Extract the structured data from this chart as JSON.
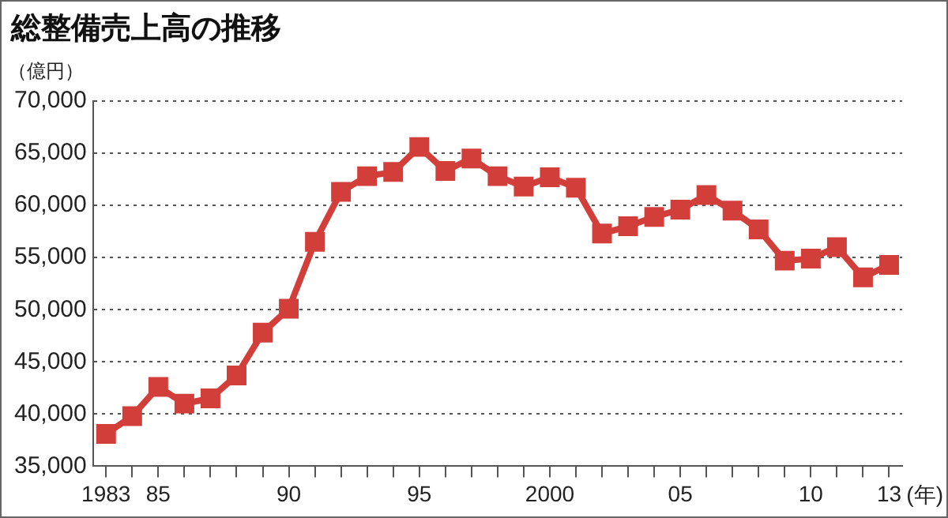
{
  "chart_data": {
    "type": "line",
    "title": "総整備売上高の推移",
    "ylabel": "（億円）",
    "xlabel": "(年)",
    "x": [
      1983,
      1984,
      1985,
      1986,
      1987,
      1988,
      1989,
      1990,
      1991,
      1992,
      1993,
      1994,
      1995,
      1996,
      1997,
      1998,
      1999,
      2000,
      2001,
      2002,
      2003,
      2004,
      2005,
      2006,
      2007,
      2008,
      2009,
      2010,
      2011,
      2012,
      2013
    ],
    "series": [
      {
        "color": "#d23f3a",
        "values": [
          38100,
          39800,
          42600,
          41000,
          41500,
          43700,
          47800,
          50100,
          56500,
          61300,
          62800,
          63200,
          65600,
          63300,
          64500,
          62800,
          61800,
          62700,
          61700,
          57300,
          58000,
          58900,
          59600,
          61000,
          59500,
          57700,
          54700,
          54900,
          56000,
          53100,
          54300
        ]
      }
    ],
    "xlim": [
      1982.5,
      2013.5
    ],
    "xticks": [
      {
        "value": 1983,
        "label": "1983"
      },
      {
        "value": 1984,
        "label": null
      },
      {
        "value": 1985,
        "label": "85"
      },
      {
        "value": 1986,
        "label": null
      },
      {
        "value": 1987,
        "label": null
      },
      {
        "value": 1988,
        "label": null
      },
      {
        "value": 1989,
        "label": null
      },
      {
        "value": 1990,
        "label": "90"
      },
      {
        "value": 1991,
        "label": null
      },
      {
        "value": 1992,
        "label": null
      },
      {
        "value": 1993,
        "label": null
      },
      {
        "value": 1994,
        "label": null
      },
      {
        "value": 1995,
        "label": "95"
      },
      {
        "value": 1996,
        "label": null
      },
      {
        "value": 1997,
        "label": null
      },
      {
        "value": 1998,
        "label": null
      },
      {
        "value": 1999,
        "label": null
      },
      {
        "value": 2000,
        "label": "2000"
      },
      {
        "value": 2001,
        "label": null
      },
      {
        "value": 2002,
        "label": null
      },
      {
        "value": 2003,
        "label": null
      },
      {
        "value": 2004,
        "label": null
      },
      {
        "value": 2005,
        "label": "05"
      },
      {
        "value": 2006,
        "label": null
      },
      {
        "value": 2007,
        "label": null
      },
      {
        "value": 2008,
        "label": null
      },
      {
        "value": 2009,
        "label": null
      },
      {
        "value": 2010,
        "label": "10"
      },
      {
        "value": 2011,
        "label": null
      },
      {
        "value": 2012,
        "label": null
      },
      {
        "value": 2013,
        "label": "13"
      }
    ],
    "ylim": [
      35000,
      70000
    ],
    "yticks": [
      {
        "value": 35000,
        "label": "35,000"
      },
      {
        "value": 40000,
        "label": "40,000"
      },
      {
        "value": 45000,
        "label": "45,000"
      },
      {
        "value": 50000,
        "label": "50,000"
      },
      {
        "value": 55000,
        "label": "55,000"
      },
      {
        "value": 60000,
        "label": "60,000"
      },
      {
        "value": 65000,
        "label": "65,000"
      },
      {
        "value": 70000,
        "label": "70,000"
      }
    ],
    "grid": "y",
    "legend": false,
    "marker": "square",
    "line_style": "solid"
  }
}
